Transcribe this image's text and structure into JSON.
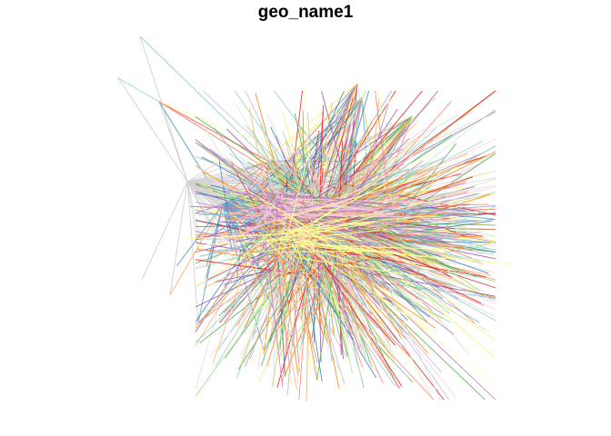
{
  "title": "geo_name1",
  "chart_data": {
    "type": "network",
    "title": "geo_name1",
    "edge_palette": [
      "#8DD3C7",
      "#FFFFB3",
      "#BEBADA",
      "#FB8072",
      "#80B1D3",
      "#FDB462",
      "#B3DE69",
      "#FCCDE5",
      "#D9D9D9",
      "#BC80BD",
      "#CCEBC5",
      "#FFED6F",
      "#E41A1C",
      "#377EB8",
      "#4DAF4A",
      "#984EA3",
      "#FF7F00"
    ],
    "grid": false,
    "legend": "none"
  }
}
